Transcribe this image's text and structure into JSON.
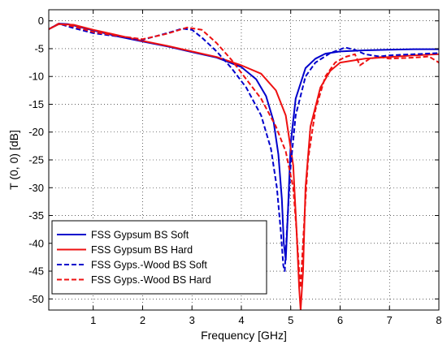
{
  "chart_data": {
    "type": "line",
    "title": "",
    "xlabel": "Frequency [GHz]",
    "ylabel": "T (0, 0) [dB]",
    "xlim": [
      0.1,
      8
    ],
    "ylim": [
      -52,
      2
    ],
    "xticks": [
      1,
      2,
      3,
      4,
      5,
      6,
      7,
      8
    ],
    "yticks": [
      0,
      -5,
      -10,
      -15,
      -20,
      -25,
      -30,
      -35,
      -40,
      -45,
      -50
    ],
    "grid": true,
    "legend": "bottom-left",
    "series": [
      {
        "name": "FSS Gypsum BS Soft",
        "color": "#0000cc",
        "dash": "solid",
        "x": [
          0.1,
          0.3,
          0.5,
          1,
          1.5,
          2,
          2.5,
          3,
          3.5,
          4,
          4.3,
          4.5,
          4.65,
          4.75,
          4.82,
          4.86,
          4.9,
          4.94,
          5,
          5.1,
          5.3,
          5.5,
          5.7,
          6,
          6.5,
          7,
          7.5,
          8
        ],
        "y": [
          -1.5,
          -0.5,
          -0.6,
          -1.7,
          -2.8,
          -3.7,
          -4.6,
          -5.6,
          -6.6,
          -8.3,
          -10.5,
          -13.5,
          -18,
          -24,
          -32,
          -40,
          -43,
          -35,
          -22,
          -14,
          -8.5,
          -6.8,
          -5.9,
          -5.5,
          -5.3,
          -5.2,
          -5.1,
          -5.1
        ]
      },
      {
        "name": "FSS Gypsum BS Hard",
        "color": "#ee1111",
        "dash": "solid",
        "x": [
          0.1,
          0.3,
          0.6,
          1,
          1.5,
          2,
          2.5,
          3,
          3.5,
          4,
          4.4,
          4.7,
          4.9,
          5.05,
          5.12,
          5.17,
          5.2,
          5.25,
          5.3,
          5.4,
          5.6,
          5.8,
          6,
          6.5,
          7,
          7.5,
          8
        ],
        "y": [
          -1.5,
          -0.6,
          -0.7,
          -1.6,
          -2.6,
          -3.6,
          -4.5,
          -5.5,
          -6.5,
          -8,
          -9.5,
          -12.5,
          -17,
          -26,
          -38,
          -48,
          -52,
          -45,
          -30,
          -19,
          -12,
          -9,
          -7.5,
          -6.8,
          -6.5,
          -6.2,
          -6
        ]
      },
      {
        "name": "FSS Gyps.-Wood BS Soft",
        "color": "#0000cc",
        "dash": "dashed",
        "x": [
          0.1,
          0.3,
          0.6,
          1,
          1.5,
          2,
          2.5,
          2.8,
          3,
          3.2,
          3.5,
          3.8,
          4.1,
          4.4,
          4.6,
          4.72,
          4.8,
          4.85,
          4.88,
          4.92,
          5,
          5.1,
          5.3,
          5.5,
          5.8,
          6.1,
          6.3,
          6.5,
          6.8,
          7,
          7.5,
          8
        ],
        "y": [
          -1.5,
          -0.5,
          -1.3,
          -2.2,
          -2.8,
          -3.4,
          -2.2,
          -1.4,
          -1.6,
          -3,
          -5.5,
          -8.5,
          -12,
          -17,
          -23,
          -30,
          -38,
          -44,
          -45,
          -38,
          -26,
          -17,
          -10,
          -7.5,
          -5.8,
          -4.8,
          -5.2,
          -6,
          -6.4,
          -6.2,
          -6,
          -5.8
        ]
      },
      {
        "name": "FSS Gyps.-Wood BS Hard",
        "color": "#ee1111",
        "dash": "dashed",
        "x": [
          0.1,
          0.3,
          0.6,
          1,
          1.5,
          2,
          2.5,
          2.9,
          3.2,
          3.5,
          3.8,
          4.1,
          4.4,
          4.7,
          4.9,
          5.05,
          5.12,
          5.17,
          5.2,
          5.23,
          5.28,
          5.35,
          5.5,
          5.7,
          5.9,
          6.1,
          6.3,
          6.4,
          6.6,
          6.8,
          7,
          7.5,
          7.8,
          8
        ],
        "y": [
          -1.5,
          -0.5,
          -1,
          -2,
          -2.7,
          -3.3,
          -2.3,
          -1.2,
          -1.6,
          -4,
          -7,
          -10.5,
          -14,
          -19,
          -23.5,
          -30,
          -38,
          -45,
          -48,
          -43,
          -35,
          -25,
          -16,
          -10,
          -7.5,
          -6.5,
          -6,
          -8,
          -6.8,
          -6.5,
          -6.8,
          -6.6,
          -6.4,
          -7.5
        ]
      }
    ]
  }
}
